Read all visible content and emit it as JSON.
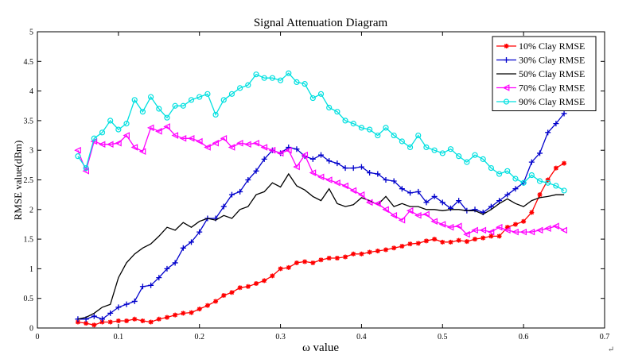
{
  "chart_data": {
    "type": "line",
    "title": "Signal Attenuation Diagram",
    "xlabel": "ω value",
    "ylabel": "RMSE value(dBm)",
    "xlim": [
      0,
      0.7
    ],
    "ylim": [
      0,
      5
    ],
    "xticks": [
      "0",
      "0.1",
      "0.2",
      "0.3",
      "0.4",
      "0.5",
      "0.6",
      "0.7"
    ],
    "yticks": [
      "0",
      "0.5",
      "1",
      "1.5",
      "2",
      "2.5",
      "3",
      "3.5",
      "4",
      "4.5",
      "5"
    ],
    "legend_position": "top-right",
    "grid": false,
    "x": [
      0.05,
      0.06,
      0.07,
      0.08,
      0.09,
      0.1,
      0.11,
      0.12,
      0.13,
      0.14,
      0.15,
      0.16,
      0.17,
      0.18,
      0.19,
      0.2,
      0.21,
      0.22,
      0.23,
      0.24,
      0.25,
      0.26,
      0.27,
      0.28,
      0.29,
      0.3,
      0.31,
      0.32,
      0.33,
      0.34,
      0.35,
      0.36,
      0.37,
      0.38,
      0.39,
      0.4,
      0.41,
      0.42,
      0.43,
      0.44,
      0.45,
      0.46,
      0.47,
      0.48,
      0.49,
      0.5,
      0.51,
      0.52,
      0.53,
      0.54,
      0.55,
      0.56,
      0.57,
      0.58,
      0.59,
      0.6,
      0.61,
      0.62,
      0.63,
      0.64,
      0.65
    ],
    "series": [
      {
        "name": "10% Clay RMSE",
        "color": "#ff0000",
        "marker": "star",
        "values": [
          0.1,
          0.08,
          0.05,
          0.1,
          0.1,
          0.12,
          0.12,
          0.15,
          0.12,
          0.1,
          0.15,
          0.18,
          0.22,
          0.25,
          0.26,
          0.32,
          0.38,
          0.45,
          0.55,
          0.6,
          0.68,
          0.7,
          0.75,
          0.8,
          0.88,
          1.0,
          1.02,
          1.1,
          1.12,
          1.1,
          1.15,
          1.18,
          1.18,
          1.2,
          1.25,
          1.25,
          1.28,
          1.3,
          1.32,
          1.35,
          1.38,
          1.42,
          1.43,
          1.47,
          1.5,
          1.45,
          1.45,
          1.48,
          1.46,
          1.5,
          1.52,
          1.55,
          1.55,
          1.7,
          1.75,
          1.8,
          1.95,
          2.25,
          2.5,
          2.7,
          2.78
        ]
      },
      {
        "name": "30% Clay RMSE",
        "color": "#0000cc",
        "marker": "plus",
        "values": [
          0.15,
          0.15,
          0.2,
          0.15,
          0.25,
          0.35,
          0.4,
          0.45,
          0.7,
          0.72,
          0.85,
          1.0,
          1.1,
          1.35,
          1.45,
          1.62,
          1.85,
          1.85,
          2.05,
          2.25,
          2.3,
          2.5,
          2.65,
          2.85,
          3.0,
          2.95,
          3.05,
          3.02,
          2.9,
          2.85,
          2.92,
          2.82,
          2.78,
          2.7,
          2.7,
          2.72,
          2.62,
          2.6,
          2.5,
          2.48,
          2.35,
          2.28,
          2.3,
          2.12,
          2.22,
          2.12,
          2.02,
          2.15,
          1.98,
          2.0,
          1.95,
          2.05,
          2.15,
          2.25,
          2.35,
          2.45,
          2.8,
          2.95,
          3.3,
          3.45,
          3.62
        ]
      },
      {
        "name": "50% Clay RMSE",
        "color": "#000000",
        "marker": "none",
        "values": [
          0.15,
          0.18,
          0.25,
          0.35,
          0.4,
          0.85,
          1.1,
          1.25,
          1.35,
          1.42,
          1.55,
          1.7,
          1.65,
          1.78,
          1.7,
          1.8,
          1.85,
          1.82,
          1.9,
          1.85,
          2.0,
          2.05,
          2.25,
          2.3,
          2.45,
          2.38,
          2.6,
          2.4,
          2.33,
          2.22,
          2.15,
          2.35,
          2.1,
          2.05,
          2.08,
          2.2,
          2.15,
          2.08,
          2.22,
          2.05,
          2.1,
          2.05,
          2.05,
          2.0,
          2.0,
          1.98,
          2.0,
          2.0,
          1.98,
          1.98,
          1.92,
          2.0,
          2.1,
          2.18,
          2.1,
          2.05,
          2.15,
          2.2,
          2.22,
          2.25,
          2.25
        ]
      },
      {
        "name": "70% Clay RMSE",
        "color": "#ff00ff",
        "marker": "triangle-left",
        "values": [
          3.0,
          2.65,
          3.15,
          3.1,
          3.1,
          3.12,
          3.25,
          3.05,
          2.98,
          3.38,
          3.32,
          3.4,
          3.25,
          3.2,
          3.2,
          3.15,
          3.05,
          3.12,
          3.2,
          3.05,
          3.12,
          3.1,
          3.12,
          3.05,
          3.0,
          2.95,
          3.0,
          2.72,
          2.92,
          2.62,
          2.55,
          2.5,
          2.45,
          2.4,
          2.32,
          2.25,
          2.12,
          2.1,
          2.0,
          1.9,
          1.82,
          1.98,
          1.9,
          1.92,
          1.8,
          1.75,
          1.7,
          1.72,
          1.58,
          1.65,
          1.65,
          1.62,
          1.7,
          1.65,
          1.62,
          1.62,
          1.62,
          1.65,
          1.68,
          1.72,
          1.65
        ]
      },
      {
        "name": "90% Clay RMSE",
        "color": "#00e0e0",
        "marker": "circle",
        "values": [
          2.9,
          2.7,
          3.2,
          3.3,
          3.5,
          3.35,
          3.45,
          3.85,
          3.65,
          3.9,
          3.7,
          3.55,
          3.75,
          3.75,
          3.85,
          3.9,
          3.95,
          3.6,
          3.85,
          3.95,
          4.05,
          4.1,
          4.28,
          4.22,
          4.22,
          4.18,
          4.3,
          4.15,
          4.12,
          3.88,
          3.95,
          3.72,
          3.65,
          3.5,
          3.45,
          3.38,
          3.35,
          3.25,
          3.38,
          3.25,
          3.15,
          3.05,
          3.25,
          3.05,
          3.0,
          2.95,
          3.02,
          2.9,
          2.8,
          2.92,
          2.85,
          2.7,
          2.6,
          2.65,
          2.52,
          2.45,
          2.58,
          2.48,
          2.45,
          2.4,
          2.32
        ]
      }
    ],
    "annotation": "↵"
  }
}
